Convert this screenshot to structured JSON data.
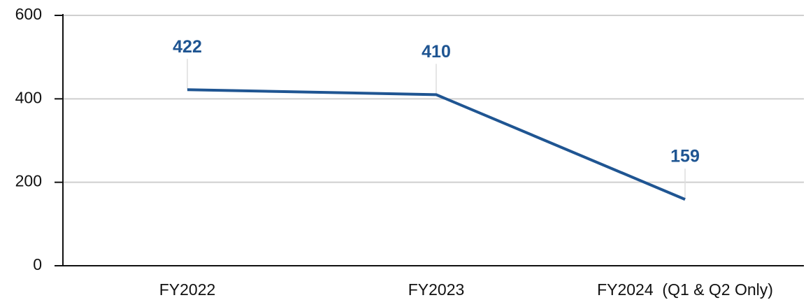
{
  "chart_data": {
    "type": "line",
    "categories": [
      "FY2022",
      "FY2023",
      "FY2024  (Q1 & Q2 Only)"
    ],
    "values": [
      422,
      410,
      159
    ],
    "color": "#1f5592",
    "ylim": [
      0,
      600
    ],
    "yticks": [
      0,
      200,
      400,
      600
    ],
    "grid": true
  }
}
